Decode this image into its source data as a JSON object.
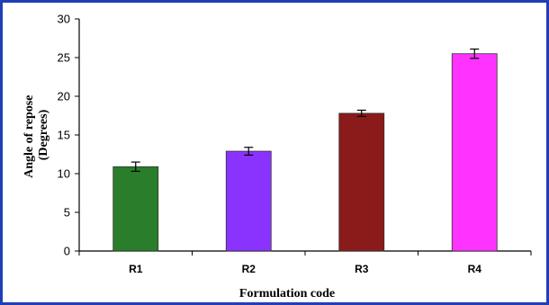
{
  "chart_data": {
    "type": "bar",
    "title": "",
    "categories": [
      "R1",
      "R2",
      "R3",
      "R4"
    ],
    "values": [
      10.9,
      12.9,
      17.8,
      25.5
    ],
    "errors": [
      0.6,
      0.5,
      0.4,
      0.6
    ],
    "bar_colors": [
      "#2a7d2a",
      "#8a33ff",
      "#8b1a1a",
      "#ff33ff"
    ],
    "xlabel": "Formulation code",
    "ylabel_line1": "Angle of repose",
    "ylabel_line2": "(Degrees)",
    "ylim": [
      0,
      30
    ],
    "yticks": [
      "0",
      "5",
      "10",
      "15",
      "20",
      "25",
      "30"
    ],
    "grid": false,
    "legend": "none"
  },
  "frame_color": "#1f3fb5"
}
